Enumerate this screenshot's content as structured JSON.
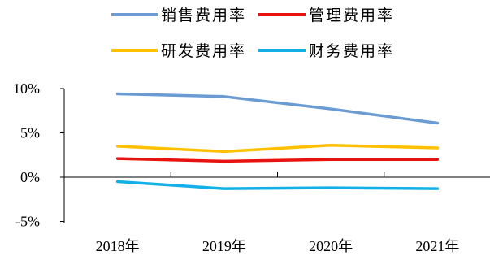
{
  "chart_data": {
    "type": "line",
    "title": "",
    "xlabel": "",
    "ylabel": "",
    "categories": [
      "2018年",
      "2019年",
      "2020年",
      "2021年"
    ],
    "y_ticks": [
      "10%",
      "5%",
      "0%",
      "-5%"
    ],
    "ylim": [
      -5,
      10
    ],
    "grid": false,
    "legend_position": "top",
    "series": [
      {
        "name": "销售费用率",
        "color": "#6A9BD2",
        "values": [
          9.4,
          9.1,
          7.7,
          6.1
        ]
      },
      {
        "name": "管理费用率",
        "color": "#E8120E",
        "values": [
          2.1,
          1.8,
          2.0,
          2.0
        ]
      },
      {
        "name": "研发费用率",
        "color": "#FFC000",
        "values": [
          3.5,
          2.9,
          3.6,
          3.3
        ]
      },
      {
        "name": "财务费用率",
        "color": "#12B0E6",
        "values": [
          -0.5,
          -1.3,
          -1.2,
          -1.3
        ]
      }
    ]
  }
}
